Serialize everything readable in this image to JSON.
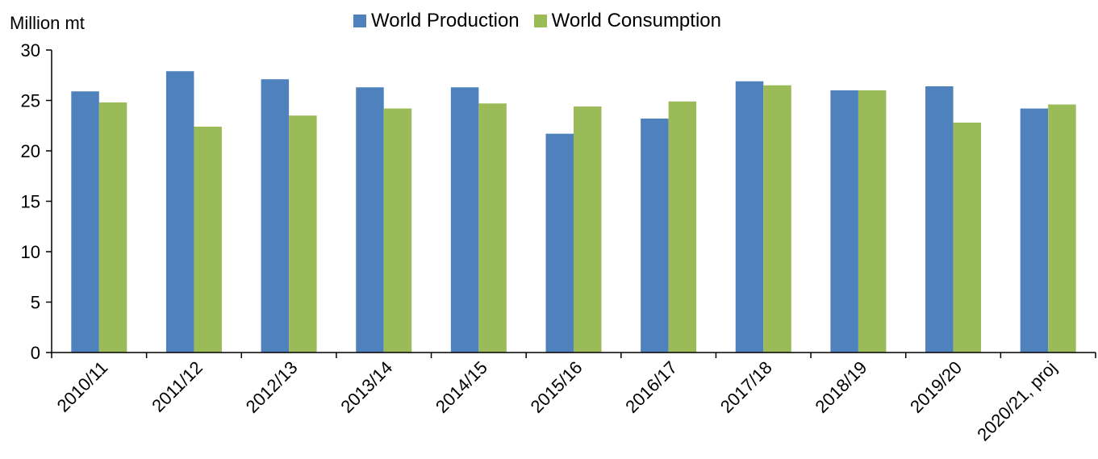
{
  "chart_data": {
    "type": "bar",
    "title": "",
    "ylabel": "Million mt",
    "xlabel": "",
    "ylim": [
      0,
      30
    ],
    "yticks": [
      0,
      5,
      10,
      15,
      20,
      25,
      30
    ],
    "grid": false,
    "legend_position": "top",
    "categories": [
      "2010/11",
      "2011/12",
      "2012/13",
      "2013/14",
      "2014/15",
      "2015/16",
      "2016/17",
      "2017/18",
      "2018/19",
      "2019/20",
      "2020/21, proj"
    ],
    "series": [
      {
        "name": "World Production",
        "color": "#4f81bd",
        "values": [
          25.9,
          27.9,
          27.1,
          26.3,
          26.3,
          21.7,
          23.2,
          26.9,
          26.0,
          26.4,
          24.2
        ]
      },
      {
        "name": "World Consumption",
        "color": "#9bbb59",
        "values": [
          24.8,
          22.4,
          23.5,
          24.2,
          24.7,
          24.4,
          24.9,
          26.5,
          26.0,
          22.8,
          24.6
        ]
      }
    ]
  }
}
